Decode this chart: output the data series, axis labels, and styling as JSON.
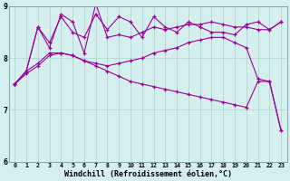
{
  "x": [
    0,
    1,
    2,
    3,
    4,
    5,
    6,
    7,
    8,
    9,
    10,
    11,
    12,
    13,
    14,
    15,
    16,
    17,
    18,
    19,
    20,
    21,
    22,
    23
  ],
  "line_upper_jagged": [
    7.5,
    7.75,
    8.6,
    8.3,
    8.8,
    8.5,
    8.4,
    8.85,
    8.55,
    8.8,
    8.7,
    8.4,
    8.8,
    8.6,
    8.5,
    8.7,
    8.6,
    8.5,
    8.5,
    8.45,
    8.65,
    8.7,
    8.55,
    8.7
  ],
  "line_upper_smooth": [
    7.5,
    7.75,
    8.6,
    8.2,
    8.85,
    8.7,
    8.1,
    9.05,
    8.4,
    8.45,
    8.4,
    8.5,
    8.6,
    8.55,
    8.6,
    8.65,
    8.65,
    8.7,
    8.65,
    8.6,
    8.6,
    8.55,
    8.55,
    8.7
  ],
  "line_declining": [
    7.5,
    7.75,
    7.9,
    8.1,
    8.1,
    8.05,
    7.95,
    7.85,
    7.75,
    7.65,
    7.55,
    7.5,
    7.45,
    7.4,
    7.35,
    7.3,
    7.25,
    7.2,
    7.15,
    7.1,
    7.05,
    7.55,
    7.55,
    6.6
  ],
  "line_rising": [
    7.5,
    7.7,
    7.85,
    8.05,
    8.1,
    8.05,
    7.95,
    7.9,
    7.85,
    7.9,
    7.95,
    8.0,
    8.1,
    8.15,
    8.2,
    8.3,
    8.35,
    8.4,
    8.4,
    8.3,
    8.2,
    7.6,
    7.55,
    6.6
  ],
  "line_color": "#990099",
  "bg_color": "#d5efef",
  "grid_color": "#b0d8d0",
  "xlabel": "Windchill (Refroidissement éolien,°C)",
  "ylim": [
    6,
    9
  ],
  "xlim": [
    -0.5,
    23.5
  ],
  "yticks": [
    6,
    7,
    8,
    9
  ],
  "xticks": [
    0,
    1,
    2,
    3,
    4,
    5,
    6,
    7,
    8,
    9,
    10,
    11,
    12,
    13,
    14,
    15,
    16,
    17,
    18,
    19,
    20,
    21,
    22,
    23
  ]
}
